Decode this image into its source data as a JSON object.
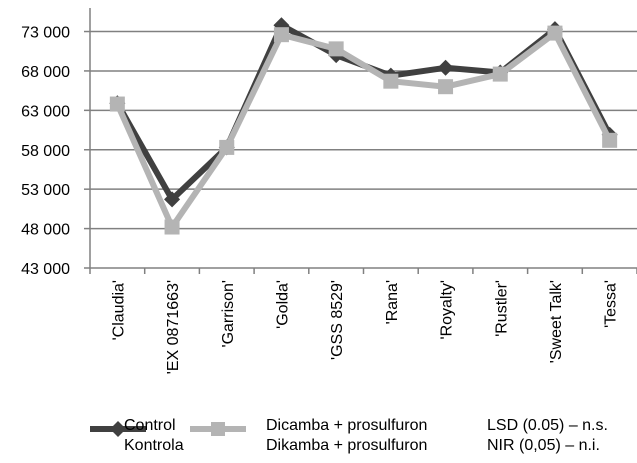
{
  "chart_data": {
    "type": "line",
    "categories": [
      "'Claudia'",
      "'EX 0871663'",
      "'Garrison'",
      "'Golda'",
      "'GSS 8529'",
      "'Rana'",
      "'Royalty'",
      "'Rustler'",
      "'Sweet Talk'",
      "'Tessa'"
    ],
    "series": [
      {
        "name": "Control",
        "name_alt": "Kontrola",
        "color": "#404040",
        "marker": "diamond",
        "values": [
          63900,
          51700,
          58300,
          73800,
          70000,
          67400,
          68400,
          67800,
          73300,
          59900
        ]
      },
      {
        "name": "Dicamba + prosulfuron",
        "name_alt": "Dikamba + prosulfuron",
        "color": "#b4b4b4",
        "marker": "square",
        "values": [
          63800,
          48200,
          58300,
          72600,
          70800,
          66700,
          66000,
          67600,
          72800,
          59200
        ]
      }
    ],
    "y_ticks": [
      "43 000",
      "48 000",
      "53 000",
      "58 000",
      "63 000",
      "68 000",
      "73 000"
    ],
    "ylim": [
      43000,
      77000
    ],
    "grid": true,
    "legend_position": "bottom",
    "title": "",
    "xlabel": "",
    "ylabel": ""
  },
  "legend": {
    "control_en": "Control",
    "control_pl": "Kontrola",
    "treatment_en": "Dicamba + prosulfuron",
    "treatment_pl": "Dikamba + prosulfuron",
    "lsd_en": "LSD (0.05) – n.s.",
    "lsd_pl": "NIR (0,05) – n.i."
  }
}
